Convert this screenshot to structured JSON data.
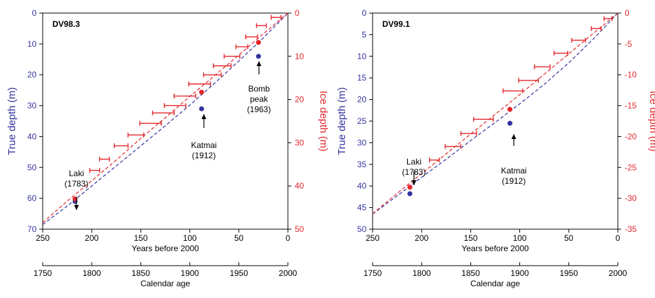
{
  "colors": {
    "true_depth": "#3333a0",
    "ice_depth": "#e3262b",
    "axis": "#000000"
  },
  "chart_data": [
    {
      "type": "line",
      "title": "DV98.3",
      "xlabel": "Years before 2000",
      "x2label": "Calendar age",
      "ylabel": "True depth (m)",
      "y2label": "Ice depth (m)",
      "xlim": [
        250,
        0
      ],
      "ylim": [
        0,
        70
      ],
      "y2lim": [
        0,
        50
      ],
      "x_ticks": [
        250,
        200,
        150,
        100,
        50,
        0
      ],
      "x2_ticks": [
        1750,
        1800,
        1850,
        1900,
        1950,
        2000
      ],
      "y_ticks": [
        0,
        10,
        20,
        30,
        40,
        50,
        60,
        70
      ],
      "y2_ticks": [
        0,
        10,
        20,
        30,
        40,
        50
      ],
      "series": [
        {
          "axis": "true_depth",
          "style": "dashed curve",
          "x": [
            250,
            225,
            200,
            175,
            150,
            125,
            100,
            75,
            50,
            25,
            0
          ],
          "values": [
            68.5,
            62.5,
            56.0,
            49.5,
            43.0,
            36.5,
            29.8,
            22.8,
            15.5,
            8.0,
            0
          ]
        },
        {
          "axis": "ice_depth",
          "style": "dashed curve",
          "x": [
            250,
            225,
            200,
            175,
            150,
            125,
            100,
            75,
            50,
            25,
            0
          ],
          "values": [
            48.5,
            43.5,
            38.8,
            34.0,
            29.0,
            24.2,
            19.3,
            14.5,
            9.7,
            4.8,
            0
          ]
        },
        {
          "axis": "ice_depth",
          "style": "error bars",
          "x": [
            12,
            27,
            37,
            47,
            57,
            67,
            77,
            90,
            105,
            115,
            127,
            140,
            155,
            170,
            187,
            197
          ],
          "x_err": [
            5,
            5,
            6,
            6,
            8,
            9,
            9,
            11,
            11,
            11,
            11,
            11,
            8,
            7,
            5,
            5
          ],
          "values": [
            1.0,
            2.9,
            5.5,
            7.8,
            10.0,
            12.2,
            14.3,
            16.4,
            19.2,
            21.4,
            23.1,
            25.5,
            28.2,
            30.7,
            33.8,
            36.4
          ]
        },
        {
          "axis": "true_depth",
          "style": "points",
          "x": [
            217,
            88,
            30
          ],
          "values": [
            61.0,
            31.0,
            14.0
          ]
        },
        {
          "axis": "ice_depth",
          "style": "points",
          "x": [
            217,
            88,
            30
          ],
          "values": [
            43.0,
            18.3,
            6.8
          ]
        }
      ],
      "annotations": {
        "laki": {
          "lines": [
            "Laki",
            "(1783)"
          ]
        },
        "katmai": {
          "lines": [
            "Katmai",
            "(1912)"
          ]
        },
        "bomb": {
          "lines": [
            "Bomb",
            "peak",
            "(1963)"
          ]
        }
      }
    },
    {
      "type": "line",
      "title": "DV99.1",
      "xlabel": "Years before 2000",
      "x2label": "Calendar age",
      "ylabel": "True depth (m)",
      "y2label": "Ice depth (m)",
      "xlim": [
        250,
        0
      ],
      "ylim": [
        0,
        50
      ],
      "y2lim": [
        0,
        -35
      ],
      "x_ticks": [
        250,
        200,
        150,
        100,
        50,
        0
      ],
      "x2_ticks": [
        1750,
        1800,
        1850,
        1900,
        1950,
        2000
      ],
      "y_ticks": [
        0,
        5,
        10,
        15,
        20,
        25,
        30,
        35,
        40,
        45,
        50
      ],
      "y2_ticks": [
        0,
        -5,
        -10,
        -15,
        -20,
        -25,
        -30,
        -35
      ],
      "series": [
        {
          "axis": "true_depth",
          "style": "dashed curve",
          "x": [
            250,
            225,
            200,
            175,
            150,
            125,
            100,
            75,
            50,
            25,
            0
          ],
          "values": [
            46.5,
            42.3,
            38.0,
            33.8,
            29.5,
            25.3,
            21.0,
            16.5,
            11.5,
            6.0,
            0
          ]
        },
        {
          "axis": "ice_depth",
          "style": "dashed curve",
          "x": [
            250,
            225,
            200,
            175,
            150,
            125,
            100,
            75,
            50,
            25,
            0
          ],
          "values": [
            -32.5,
            -29.2,
            -26.0,
            -22.8,
            -19.6,
            -16.4,
            -13.2,
            -9.9,
            -6.6,
            -3.3,
            0
          ]
        },
        {
          "axis": "ice_depth",
          "style": "error bars",
          "x": [
            10,
            22,
            40,
            58,
            77,
            91,
            107,
            137,
            152,
            168,
            187
          ],
          "x_err": [
            4,
            5,
            7,
            7,
            8,
            10,
            10,
            10,
            8,
            8,
            5
          ],
          "values": [
            -0.9,
            -2.5,
            -4.4,
            -6.5,
            -8.7,
            -10.9,
            -12.6,
            -17.2,
            -19.5,
            -21.6,
            -23.8
          ]
        },
        {
          "axis": "true_depth",
          "style": "points",
          "x": [
            212,
            110
          ],
          "values": [
            41.8,
            25.5
          ]
        },
        {
          "axis": "ice_depth",
          "style": "points",
          "x": [
            212,
            110
          ],
          "values": [
            -28.2,
            -15.6
          ]
        }
      ],
      "annotations": {
        "laki": {
          "lines": [
            "Laki",
            "(1783)"
          ]
        },
        "katmai": {
          "lines": [
            "Katmai",
            "(1912)"
          ]
        }
      }
    }
  ]
}
